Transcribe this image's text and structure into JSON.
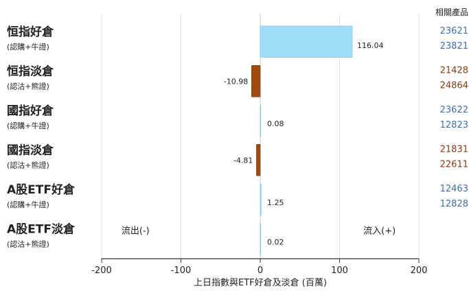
{
  "chart_data": {
    "type": "bar",
    "orientation": "horizontal",
    "title": "",
    "xlabel": "上日指數與ETF好倉及淡倉 (百萬)",
    "ylabel": "",
    "xlim": [
      -200,
      200
    ],
    "xticks": [
      -200,
      -100,
      0,
      100,
      200
    ],
    "grid": true,
    "categories": [
      {
        "main": "恒指好倉",
        "sub": "(認購+牛證)",
        "value": 116.04,
        "value_label": "116.04",
        "color": "#9fdcf5",
        "products": [
          "23621",
          "23821"
        ],
        "product_color": "#3d6fa8"
      },
      {
        "main": "恒指淡倉",
        "sub": "(認沽+熊證)",
        "value": -10.98,
        "value_label": "-10.98",
        "color": "#a04a10",
        "products": [
          "21428",
          "24864"
        ],
        "product_color": "#8a3a10"
      },
      {
        "main": "國指好倉",
        "sub": "(認購+牛證)",
        "value": 0.08,
        "value_label": "0.08",
        "color": "#9fdcf5",
        "products": [
          "23622",
          "12823"
        ],
        "product_color": "#3d6fa8"
      },
      {
        "main": "國指淡倉",
        "sub": "(認沽+熊證)",
        "value": -4.81,
        "value_label": "-4.81",
        "color": "#a04a10",
        "products": [
          "21831",
          "22611"
        ],
        "product_color": "#8a3a10"
      },
      {
        "main": "A股ETF好倉",
        "sub": "(認購+牛證)",
        "value": 1.25,
        "value_label": "1.25",
        "color": "#9fdcf5",
        "products": [
          "12463",
          "12828"
        ],
        "product_color": "#3d6fa8"
      },
      {
        "main": "A股ETF淡倉",
        "sub": "(認沽+熊證)",
        "value": 0.02,
        "value_label": "0.02",
        "color": "#a04a10",
        "products": [],
        "product_color": "#8a3a10"
      }
    ],
    "products_header": "相關產品",
    "annotations": {
      "outflow": "流出(-)",
      "inflow": "流入(+)"
    }
  }
}
